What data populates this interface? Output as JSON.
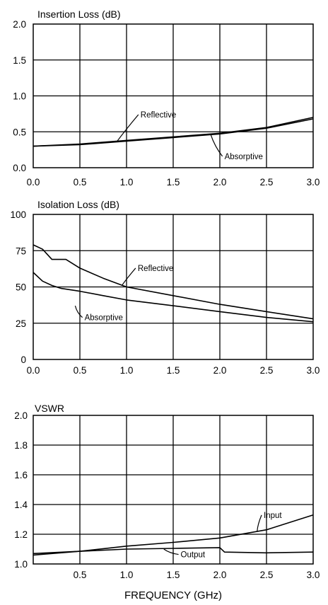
{
  "chart_data": [
    {
      "type": "line",
      "title": "Insertion Loss (dB)",
      "xlabel": "",
      "ylabel": "",
      "xlim": [
        0,
        3.0
      ],
      "ylim": [
        0,
        2.0
      ],
      "x_ticks": [
        "0.0",
        "0.5",
        "1.0",
        "1.5",
        "2.0",
        "2.5",
        "3.0"
      ],
      "y_ticks": [
        "0.0",
        "0.5",
        "1.0",
        "1.5",
        "2.0"
      ],
      "grid": true,
      "series": [
        {
          "name": "Reflective",
          "x": [
            0.0,
            0.5,
            1.0,
            1.5,
            2.0,
            2.5,
            3.0
          ],
          "y": [
            0.3,
            0.33,
            0.38,
            0.43,
            0.48,
            0.56,
            0.7
          ]
        },
        {
          "name": "Absorptive",
          "x": [
            0.0,
            0.5,
            1.0,
            1.5,
            2.0,
            2.5,
            3.0
          ],
          "y": [
            0.3,
            0.32,
            0.37,
            0.42,
            0.47,
            0.55,
            0.68
          ]
        }
      ],
      "annotations": [
        {
          "text": "Reflective",
          "x": 1.15,
          "y": 0.7,
          "point_x": 0.9,
          "point_y": 0.37
        },
        {
          "text": "Absorptive",
          "x": 2.05,
          "y": 0.12,
          "point_x": 1.9,
          "point_y": 0.47
        }
      ]
    },
    {
      "type": "line",
      "title": "Isolation Loss (dB)",
      "xlabel": "",
      "ylabel": "",
      "xlim": [
        0,
        3.0
      ],
      "ylim": [
        0,
        100
      ],
      "x_ticks": [
        "0.0",
        "0.5",
        "1.0",
        "1.5",
        "2.0",
        "2.5",
        "3.0"
      ],
      "y_ticks": [
        "0",
        "25",
        "50",
        "75",
        "100"
      ],
      "grid": true,
      "series": [
        {
          "name": "Reflective",
          "x": [
            0.0,
            0.1,
            0.2,
            0.35,
            0.5,
            0.75,
            1.0,
            1.5,
            2.0,
            2.5,
            3.0
          ],
          "y": [
            79,
            76,
            69,
            69,
            63,
            56,
            50,
            44,
            38,
            33,
            28
          ]
        },
        {
          "name": "Absorptive",
          "x": [
            0.0,
            0.1,
            0.2,
            0.3,
            0.5,
            0.75,
            1.0,
            1.5,
            2.0,
            2.5,
            3.0
          ],
          "y": [
            60,
            54,
            51,
            49,
            47,
            44,
            41,
            37,
            33,
            29,
            26
          ]
        }
      ],
      "annotations": [
        {
          "text": "Reflective",
          "x": 1.12,
          "y": 61,
          "point_x": 0.95,
          "point_y": 51
        },
        {
          "text": "Absorptive",
          "x": 0.55,
          "y": 27,
          "point_x": 0.45,
          "point_y": 37
        }
      ]
    },
    {
      "type": "line",
      "title": "VSWR",
      "xlabel": "FREQUENCY (GHz)",
      "ylabel": "",
      "xlim": [
        0,
        3.0
      ],
      "ylim": [
        1.0,
        2.0
      ],
      "x_ticks": [
        "0.5",
        "1.0",
        "1.5",
        "2.0",
        "2.5",
        "3.0"
      ],
      "y_ticks": [
        "1.0",
        "1.2",
        "1.4",
        "1.6",
        "1.8",
        "2.0"
      ],
      "grid": true,
      "series": [
        {
          "name": "Input",
          "x": [
            0.0,
            0.5,
            1.0,
            1.5,
            2.0,
            2.5,
            3.0
          ],
          "y": [
            1.06,
            1.085,
            1.12,
            1.145,
            1.175,
            1.23,
            1.33
          ]
        },
        {
          "name": "Output",
          "x": [
            0.0,
            0.5,
            1.0,
            1.5,
            2.0,
            2.05,
            2.5,
            3.0
          ],
          "y": [
            1.07,
            1.085,
            1.1,
            1.105,
            1.11,
            1.08,
            1.075,
            1.08
          ]
        }
      ],
      "annotations": [
        {
          "text": "Input",
          "x": 2.47,
          "y": 1.31,
          "point_x": 2.4,
          "point_y": 1.22
        },
        {
          "text": "Output",
          "x": 1.58,
          "y": 1.045,
          "point_x": 1.4,
          "point_y": 1.1
        }
      ]
    }
  ]
}
